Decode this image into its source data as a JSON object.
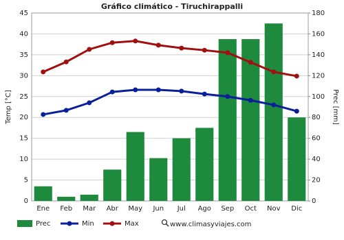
{
  "chart_data": {
    "type": "combo",
    "title": "Gráfico climático - Tiruchirappalli",
    "categories": [
      "Ene",
      "Feb",
      "Mar",
      "Abr",
      "May",
      "Jun",
      "Jul",
      "Ago",
      "Sep",
      "Oct",
      "Nov",
      "Dic"
    ],
    "ylabel": "Temp [°C]",
    "y2label": "Prec [mm]",
    "ylim": [
      0,
      45
    ],
    "yticks": [
      0,
      5,
      10,
      15,
      20,
      25,
      30,
      35,
      40,
      45
    ],
    "y2lim": [
      0,
      180
    ],
    "y2ticks": [
      0,
      20,
      40,
      60,
      80,
      100,
      120,
      140,
      160,
      180
    ],
    "grid": true,
    "series": [
      {
        "name": "Prec",
        "type": "bar",
        "axis": "y2",
        "color": "#1e8a3e",
        "values": [
          14,
          4,
          6,
          30,
          66,
          41,
          60,
          70,
          155,
          155,
          170,
          80
        ]
      },
      {
        "name": "Min",
        "type": "line",
        "color": "#0a1f9a",
        "values": [
          20.7,
          21.7,
          23.5,
          26.1,
          26.6,
          26.6,
          26.3,
          25.6,
          25.0,
          24.1,
          23.0,
          21.5
        ]
      },
      {
        "name": "Max",
        "type": "line",
        "color": "#a01010",
        "values": [
          30.9,
          33.3,
          36.3,
          37.9,
          38.3,
          37.3,
          36.6,
          36.1,
          35.5,
          33.2,
          30.9,
          29.9
        ]
      }
    ],
    "source": "www.climasyviajes.com"
  }
}
